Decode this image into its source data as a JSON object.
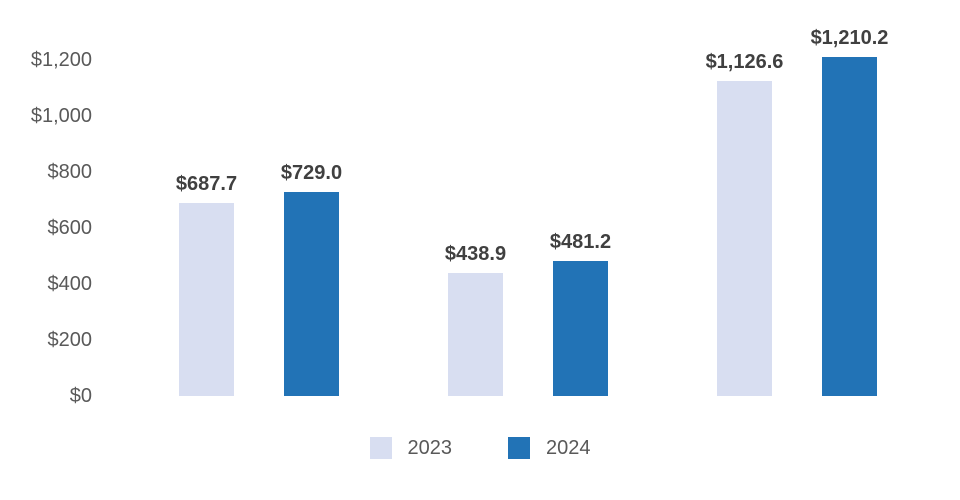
{
  "chart_data": {
    "type": "bar",
    "title": "",
    "xlabel": "",
    "ylabel": "",
    "categories": [
      "",
      "",
      ""
    ],
    "series": [
      {
        "name": "2023",
        "color": "#D8DEF1",
        "values": [
          687.7,
          438.9,
          1126.6
        ],
        "value_labels": [
          "$687.7",
          "$438.9",
          "$1,126.6"
        ]
      },
      {
        "name": "2024",
        "color": "#2273B6",
        "values": [
          729.0,
          481.2,
          1210.2
        ],
        "value_labels": [
          "$729.0",
          "$481.2",
          "$1,210.2"
        ]
      }
    ],
    "y_axis": {
      "min": 0,
      "max": 1200,
      "tick_values": [
        0,
        200,
        400,
        600,
        800,
        1000,
        1200
      ],
      "tick_labels": [
        "$0",
        "$200",
        "$400",
        "$600",
        "$800",
        "$1,000",
        "$1,200"
      ]
    },
    "legend": [
      {
        "label": "2023",
        "color": "#D8DEF1"
      },
      {
        "label": "2024",
        "color": "#2273B6"
      }
    ],
    "grid": false,
    "axis_lines": false,
    "legend_position": "bottom",
    "data_label_color": "#404040",
    "tick_label_color": "#595959"
  }
}
